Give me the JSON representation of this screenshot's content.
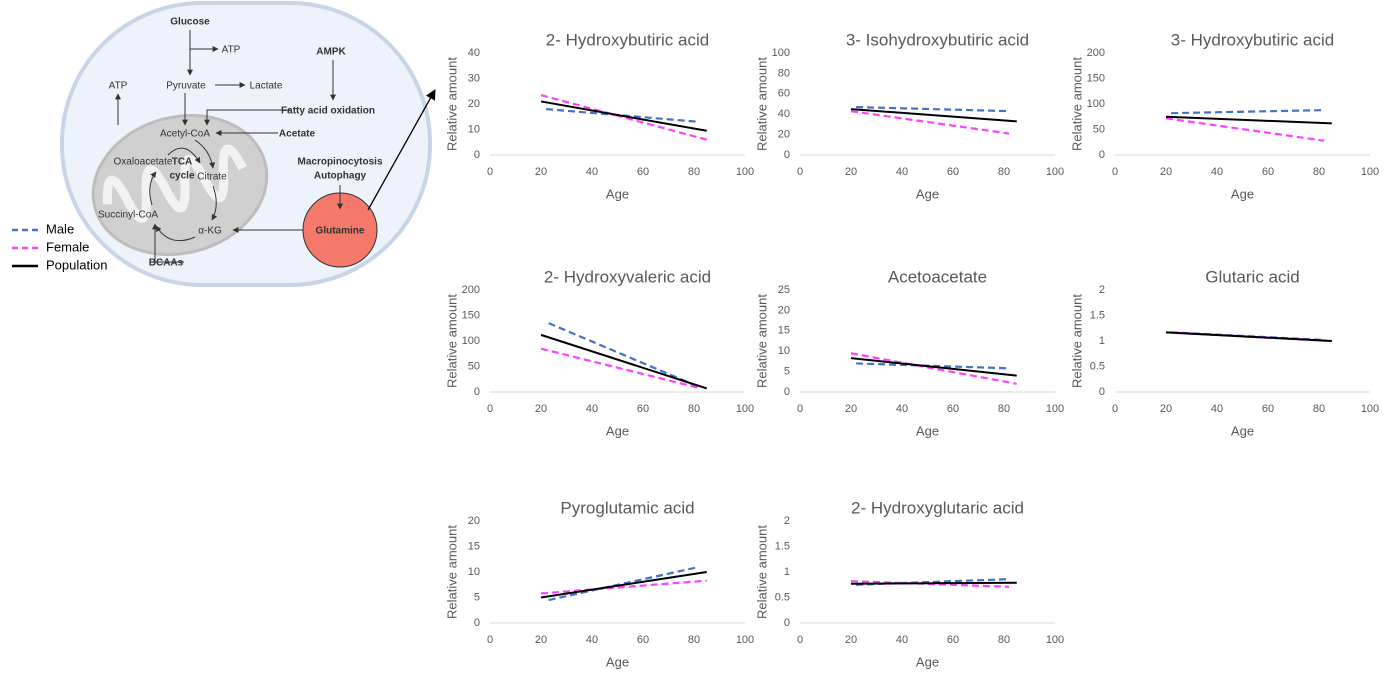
{
  "diagram": {
    "labels": [
      "Glucose",
      "ATP",
      "Pyruvate",
      "Lactate",
      "AMPK",
      "Fatty acid oxidation",
      "ATP",
      "Acetyl-CoA",
      "Acetate",
      "Oxaloacetate",
      "Citrate",
      "TCA",
      "cycle",
      "Macropinocytosis",
      "Autophagy",
      "Succinyl-CoA",
      "α-KG",
      "Glutamine",
      "BCAAs"
    ]
  },
  "legend": [
    {
      "name": "Male",
      "color": "#4472c4",
      "dashed": true
    },
    {
      "name": "Female",
      "color": "#ff40ff",
      "dashed": true
    },
    {
      "name": "Population",
      "color": "#000000",
      "dashed": false
    }
  ],
  "chart_data": [
    {
      "type": "line",
      "title": "2- Hydroxybutiric acid",
      "x_label": "Age",
      "y_label": "Relative amount",
      "xlim": [
        0,
        100
      ],
      "xticks": [
        0,
        20,
        40,
        60,
        80,
        100
      ],
      "ylim": [
        0,
        40
      ],
      "yticks": [
        0,
        10,
        20,
        30,
        40
      ],
      "series": [
        {
          "x": [
            22,
            82
          ],
          "values": [
            18,
            13
          ]
        },
        {
          "x": [
            20,
            85
          ],
          "values": [
            23.5,
            6
          ]
        },
        {
          "x": [
            20,
            85
          ],
          "values": [
            21,
            9.5
          ]
        }
      ]
    },
    {
      "type": "line",
      "title": "3- Isohydroxybutiric acid",
      "x_label": "Age",
      "y_label": "Relative amount",
      "xlim": [
        0,
        100
      ],
      "xticks": [
        0,
        20,
        40,
        60,
        80,
        100
      ],
      "ylim": [
        0,
        100
      ],
      "yticks": [
        0,
        20,
        40,
        60,
        80,
        100
      ],
      "series": [
        {
          "x": [
            22,
            82
          ],
          "values": [
            47,
            43
          ]
        },
        {
          "x": [
            20,
            82
          ],
          "values": [
            43,
            21
          ]
        },
        {
          "x": [
            20,
            85
          ],
          "values": [
            45,
            33
          ]
        }
      ]
    },
    {
      "type": "line",
      "title": "3- Hydroxybutiric acid",
      "x_label": "Age",
      "y_label": "Relative amount",
      "xlim": [
        0,
        100
      ],
      "xticks": [
        0,
        20,
        40,
        60,
        80,
        100
      ],
      "ylim": [
        0,
        200
      ],
      "yticks": [
        0,
        50,
        100,
        150,
        200
      ],
      "series": [
        {
          "x": [
            22,
            82
          ],
          "values": [
            82,
            88
          ]
        },
        {
          "x": [
            20,
            82
          ],
          "values": [
            72,
            28
          ]
        },
        {
          "x": [
            20,
            85
          ],
          "values": [
            75,
            62
          ]
        }
      ]
    },
    {
      "type": "line",
      "title": "2- Hydroxyvaleric acid",
      "x_label": "Age",
      "y_label": "Relative amount",
      "xlim": [
        0,
        100
      ],
      "xticks": [
        0,
        20,
        40,
        60,
        80,
        100
      ],
      "ylim": [
        0,
        200
      ],
      "yticks": [
        0,
        50,
        100,
        150,
        200
      ],
      "series": [
        {
          "x": [
            23,
            82
          ],
          "values": [
            135,
            10
          ]
        },
        {
          "x": [
            20,
            82
          ],
          "values": [
            85,
            8
          ]
        },
        {
          "x": [
            20,
            85
          ],
          "values": [
            112,
            7
          ]
        }
      ]
    },
    {
      "type": "line",
      "title": "Acetoacetate",
      "x_label": "Age",
      "y_label": "Relative amount",
      "xlim": [
        0,
        100
      ],
      "xticks": [
        0,
        20,
        40,
        60,
        80,
        100
      ],
      "ylim": [
        0,
        25
      ],
      "yticks": [
        0,
        5,
        10,
        15,
        20,
        25
      ],
      "series": [
        {
          "x": [
            22,
            82
          ],
          "values": [
            7,
            5.8
          ]
        },
        {
          "x": [
            20,
            85
          ],
          "values": [
            9.5,
            2
          ]
        },
        {
          "x": [
            20,
            85
          ],
          "values": [
            8.3,
            4
          ]
        }
      ]
    },
    {
      "type": "line",
      "title": "Glutaric acid",
      "x_label": "Age",
      "y_label": "Relative amount",
      "xlim": [
        0,
        100
      ],
      "xticks": [
        0,
        20,
        40,
        60,
        80,
        100
      ],
      "ylim": [
        0,
        2
      ],
      "yticks": [
        0,
        0.5,
        1,
        1.5,
        2
      ],
      "series": [
        {
          "x": [
            22,
            82
          ],
          "values": [
            1.17,
            1.02
          ]
        },
        {
          "x": [
            20,
            85
          ],
          "values": [
            1.17,
            1.0
          ]
        },
        {
          "x": [
            20,
            85
          ],
          "values": [
            1.17,
            1.0
          ]
        }
      ]
    },
    {
      "type": "line",
      "title": "Pyroglutamic acid",
      "x_label": "Age",
      "y_label": "Relative amount",
      "xlim": [
        0,
        100
      ],
      "xticks": [
        0,
        20,
        40,
        60,
        80,
        100
      ],
      "ylim": [
        0,
        20
      ],
      "yticks": [
        0,
        5,
        10,
        15,
        20
      ],
      "series": [
        {
          "x": [
            23,
            82
          ],
          "values": [
            4.5,
            11
          ]
        },
        {
          "x": [
            20,
            85
          ],
          "values": [
            5.8,
            8.3
          ]
        },
        {
          "x": [
            20,
            85
          ],
          "values": [
            5,
            10
          ]
        }
      ]
    },
    {
      "type": "line",
      "title": "2- Hydroxyglutaric acid",
      "x_label": "Age",
      "y_label": "Relative amount",
      "xlim": [
        0,
        100
      ],
      "xticks": [
        0,
        20,
        40,
        60,
        80,
        100
      ],
      "ylim": [
        0,
        2
      ],
      "yticks": [
        0,
        0.5,
        1,
        1.5,
        2
      ],
      "series": [
        {
          "x": [
            22,
            82
          ],
          "values": [
            0.75,
            0.86
          ]
        },
        {
          "x": [
            20,
            82
          ],
          "values": [
            0.82,
            0.71
          ]
        },
        {
          "x": [
            20,
            85
          ],
          "values": [
            0.77,
            0.79
          ]
        }
      ]
    }
  ]
}
